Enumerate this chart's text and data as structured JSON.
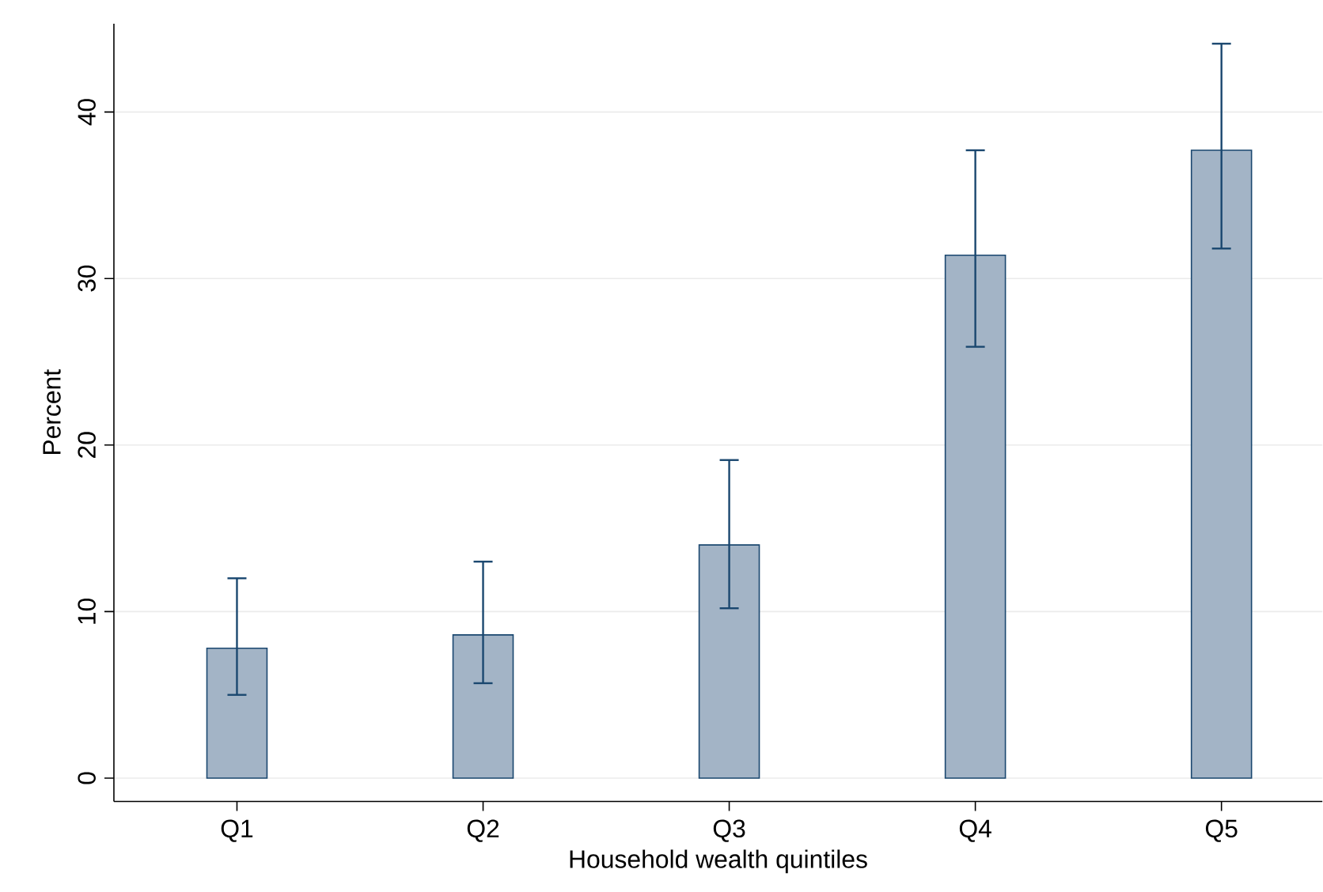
{
  "chart_data": {
    "type": "bar",
    "xlabel": "Household wealth quintiles",
    "ylabel": "Percent",
    "categories": [
      "Q1",
      "Q2",
      "Q3",
      "Q4",
      "Q5"
    ],
    "values": [
      7.8,
      8.6,
      14.0,
      31.4,
      37.7
    ],
    "errors": [
      [
        5.0,
        12.0
      ],
      [
        5.7,
        13.0
      ],
      [
        10.2,
        19.1
      ],
      [
        25.9,
        37.7
      ],
      [
        31.8,
        44.1
      ]
    ],
    "color": "#a3b4c6",
    "ylim": [
      -1.4,
      45.3
    ],
    "yticks": [
      0,
      10,
      20,
      30,
      40
    ],
    "grid": "y"
  }
}
